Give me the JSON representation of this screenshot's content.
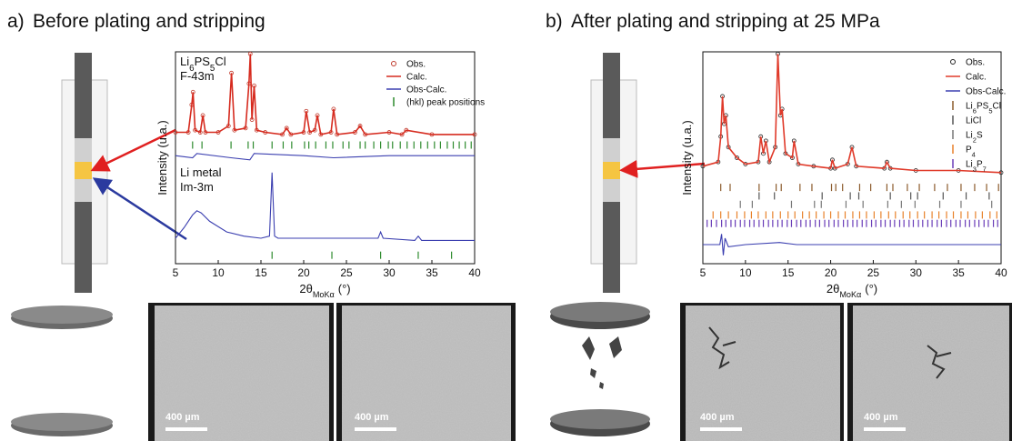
{
  "panel_a": {
    "label": "a)",
    "title": "Before plating and stripping",
    "scale_bars": [
      "400 µm",
      "400 µm"
    ]
  },
  "panel_b": {
    "label": "b)",
    "title": "After plating and stripping at 25 MPa",
    "scale_bars": [
      "400 µm",
      "400 µm"
    ]
  },
  "chart_data": [
    {
      "type": "line",
      "y_label": "Intensity (u.a.)",
      "x_label": "2θ",
      "x_label_sub": "MoKα",
      "x_label_unit": "(°)",
      "xlim": [
        5,
        40
      ],
      "xticks": [
        5,
        10,
        15,
        20,
        25,
        30,
        35,
        40
      ],
      "ylim": [
        0,
        100
      ],
      "annotations": [
        [
          "Li6PS5Cl",
          "F-43m"
        ],
        [
          "Li metal",
          "Im-3m"
        ]
      ],
      "series": [
        {
          "name": "Obs.",
          "color": "#c0392b",
          "marker": "circle",
          "x": [
            5,
            6.5,
            6.9,
            7.05,
            7.3,
            7.9,
            8.2,
            8.5,
            10,
            11.2,
            11.55,
            11.9,
            13.2,
            13.6,
            13.75,
            13.95,
            14.2,
            14.5,
            15.5,
            17.5,
            18,
            18.5,
            20,
            20.3,
            20.7,
            21.3,
            21.6,
            22,
            23.2,
            23.5,
            23.9,
            26,
            26.6,
            27.2,
            30,
            31.5,
            32,
            35,
            40
          ],
          "values": [
            62,
            62,
            75,
            81,
            63,
            62,
            70,
            62,
            62,
            65,
            90,
            63,
            64,
            85,
            99,
            68,
            84,
            63,
            62,
            61,
            64,
            61,
            62,
            72,
            62,
            63,
            70,
            61,
            62,
            73,
            61,
            62,
            65,
            61,
            62,
            61,
            63,
            61,
            61
          ]
        },
        {
          "name": "Calc.",
          "color": "#d62b1f",
          "x": [
            5,
            6.5,
            6.9,
            7.05,
            7.3,
            7.9,
            8.2,
            8.5,
            10,
            11.2,
            11.55,
            11.9,
            13.2,
            13.6,
            13.75,
            13.95,
            14.2,
            14.5,
            15.5,
            17.5,
            18,
            18.5,
            20,
            20.3,
            20.7,
            21.3,
            21.6,
            22,
            23.2,
            23.5,
            23.9,
            26,
            26.6,
            27.2,
            30,
            31.5,
            32,
            35,
            40
          ],
          "values": [
            62,
            62,
            75,
            81,
            63,
            62,
            70,
            62,
            62,
            65,
            90,
            63,
            64,
            85,
            99,
            68,
            84,
            63,
            62,
            61,
            64,
            61,
            62,
            72,
            62,
            63,
            70,
            61,
            62,
            73,
            61,
            62,
            65,
            61,
            62,
            61,
            63,
            61,
            61
          ]
        },
        {
          "name": "Obs-Calc.",
          "color": "#3b3fb0",
          "x": [
            5,
            7,
            7.5,
            11.5,
            13.7,
            14.2,
            20,
            23.5,
            30,
            40
          ],
          "values": [
            51,
            50,
            52,
            50,
            49,
            52,
            51,
            50,
            51,
            51
          ]
        },
        {
          "name": "(hkl) peak positions",
          "color": "#2e8b2e",
          "marker": "tick",
          "x": [
            7.0,
            8.1,
            11.5,
            13.5,
            14.1,
            16.3,
            17.6,
            18.6,
            20.1,
            20.6,
            21.4,
            22.6,
            23.4,
            24.6,
            25.3,
            26.6,
            27.2,
            28.2,
            29.0,
            29.9,
            30.4,
            31.3,
            32.1,
            32.9,
            33.7,
            34.5,
            35.3,
            36.0,
            36.8,
            37.5,
            38.2,
            38.9,
            39.6
          ]
        }
      ],
      "li_metal": {
        "color": "#3b3fb0",
        "peak_color": "#2e8b2e",
        "x": [
          5,
          6,
          7,
          7.5,
          8,
          9,
          11,
          13,
          15,
          16,
          16.3,
          16.6,
          17,
          20,
          25,
          28.7,
          29,
          29.3,
          33,
          33.4,
          33.8,
          40
        ],
        "values": [
          12,
          17,
          23,
          25,
          24,
          20,
          15,
          13,
          12,
          13,
          43,
          13,
          12,
          12,
          12,
          12,
          15,
          12,
          11,
          13,
          11,
          11
        ],
        "peak_positions": [
          16.3,
          23.3,
          29.0,
          33.4,
          37.3
        ]
      }
    },
    {
      "type": "line",
      "y_label": "Intensity (u.a.)",
      "x_label": "2θ",
      "x_label_sub": "MoKα",
      "x_label_unit": "(°)",
      "xlim": [
        5,
        40
      ],
      "xticks": [
        5,
        10,
        15,
        20,
        25,
        30,
        35,
        40
      ],
      "ylim": [
        0,
        100
      ],
      "series": [
        {
          "name": "Obs.",
          "color": "#222222",
          "marker": "circle",
          "x": [
            5,
            6.8,
            7.1,
            7.3,
            7.5,
            7.7,
            8,
            9,
            10,
            11.5,
            11.8,
            12.1,
            12.4,
            12.8,
            13.5,
            13.8,
            14.1,
            14.3,
            14.7,
            15.5,
            15.7,
            16.2,
            18,
            20,
            20.2,
            20.5,
            22,
            22.5,
            23,
            26.3,
            26.6,
            27,
            30,
            35,
            40
          ],
          "values": [
            46,
            48,
            60,
            79,
            66,
            70,
            55,
            50,
            47,
            48,
            60,
            52,
            58,
            48,
            55,
            99,
            70,
            73,
            52,
            50,
            58,
            47,
            46,
            45,
            49,
            45,
            47,
            55,
            46,
            45,
            48,
            45,
            44,
            44,
            43
          ]
        },
        {
          "name": "Calc.",
          "color": "#e03a2a",
          "x": [
            5,
            6.8,
            7.1,
            7.3,
            7.5,
            7.7,
            8,
            9,
            10,
            11.5,
            11.8,
            12.1,
            12.4,
            12.8,
            13.5,
            13.8,
            14.1,
            14.3,
            14.7,
            15.5,
            15.7,
            16.2,
            18,
            20,
            20.2,
            20.5,
            22,
            22.5,
            23,
            26.3,
            26.6,
            27,
            30,
            35,
            40
          ],
          "values": [
            46,
            48,
            60,
            79,
            66,
            70,
            55,
            50,
            47,
            48,
            60,
            52,
            58,
            48,
            55,
            99,
            70,
            73,
            52,
            50,
            58,
            47,
            46,
            45,
            49,
            45,
            47,
            55,
            46,
            45,
            48,
            45,
            44,
            44,
            43
          ]
        },
        {
          "name": "Obs-Calc.",
          "color": "#3b3fb0",
          "x": [
            5,
            7,
            7.2,
            7.4,
            7.6,
            8,
            10,
            14,
            16,
            20,
            30,
            40
          ],
          "values": [
            9,
            9,
            14,
            4,
            12,
            8,
            9,
            10,
            9,
            9,
            9,
            9
          ]
        },
        {
          "name": "Li6PS5Cl",
          "color": "#8b5a2b",
          "marker": "tick",
          "x": [
            7.1,
            8.2,
            11.6,
            13.6,
            14.2,
            16.4,
            17.8,
            20.1,
            20.6,
            21.4,
            23.4,
            24.7,
            26.6,
            27.3,
            29,
            30.4,
            32.2,
            33.7,
            35.3,
            36.9,
            38.3,
            39.7
          ]
        },
        {
          "name": "LiCl",
          "color": "#555555",
          "marker": "tick",
          "x": [
            11.6,
            13.4,
            19.0,
            22.3,
            23.3,
            27.0,
            29.4,
            30.2,
            33.2,
            35.9,
            38.6
          ]
        },
        {
          "name": "Li2S",
          "color": "#777777",
          "marker": "tick",
          "x": [
            9.4,
            10.8,
            15.4,
            18.1,
            18.9,
            21.8,
            23.8,
            26.7,
            28.3,
            29.9,
            32.8,
            35.3,
            38.9
          ]
        },
        {
          "name": "P4",
          "color": "#e8812a",
          "marker": "tick",
          "x": [
            6.2,
            7.1,
            8.0,
            9.0,
            9.9,
            10.7,
            11.5,
            12.4,
            13.2,
            14.1,
            15.0,
            15.8,
            16.7,
            17.5,
            18.3,
            19.2,
            20.0,
            20.9,
            21.7,
            22.6,
            23.4,
            24.2,
            25.1,
            25.9,
            26.8,
            27.6,
            28.5,
            29.3,
            30.2,
            31.0,
            31.9,
            32.7,
            33.6,
            34.4,
            35.3,
            36.1,
            37.0,
            37.8,
            38.7,
            39.5
          ]
        },
        {
          "name": "Li3P7",
          "color": "#6a3db8",
          "marker": "tick",
          "x": [
            5.5,
            6.0,
            6.6,
            7.2,
            7.7,
            8.3,
            8.8,
            9.4,
            9.9,
            10.5,
            11.0,
            11.6,
            12.1,
            12.7,
            13.2,
            13.8,
            14.3,
            14.9,
            15.4,
            16.0,
            16.5,
            17.1,
            17.6,
            18.2,
            18.7,
            19.3,
            19.8,
            20.4,
            20.9,
            21.5,
            22.0,
            22.6,
            23.1,
            23.7,
            24.2,
            24.8,
            25.3,
            25.9,
            26.4,
            27.0,
            27.5,
            28.1,
            28.6,
            29.2,
            29.7,
            30.3,
            30.8,
            31.4,
            31.9,
            32.5,
            33.0,
            33.6,
            34.1,
            34.7,
            35.2,
            35.8,
            36.3,
            36.9,
            37.4,
            38.0,
            38.5,
            39.1,
            39.6
          ]
        }
      ]
    }
  ]
}
